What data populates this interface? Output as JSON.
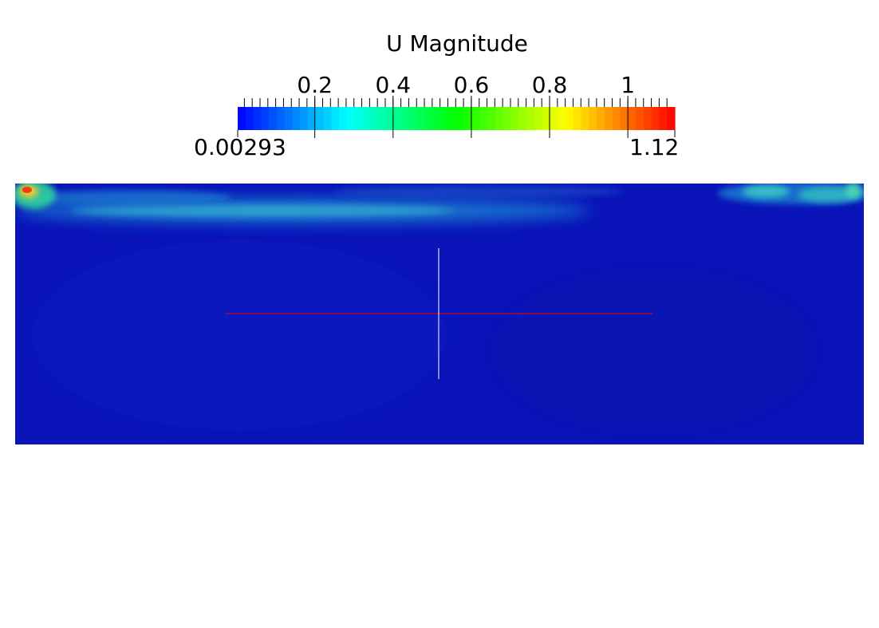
{
  "legend": {
    "title": "U Magnitude",
    "ticks": [
      {
        "value": 0.2,
        "label": "0.2"
      },
      {
        "value": 0.4,
        "label": "0.4"
      },
      {
        "value": 0.6,
        "label": "0.6"
      },
      {
        "value": 0.8,
        "label": "0.8"
      },
      {
        "value": 1.0,
        "label": "1"
      }
    ],
    "min": 0.00293,
    "max": 1.12,
    "min_label": "0.00293",
    "max_label": "1.12",
    "colormap": [
      "#0000ff",
      "#00ffff",
      "#00ff00",
      "#ffff00",
      "#ff0000"
    ],
    "color_steps": 56
  },
  "field": {
    "background_color": "#0a14b8",
    "crosshair_horizontal_color": "#ff0000",
    "crosshair_vertical_color": "#ffffff"
  }
}
